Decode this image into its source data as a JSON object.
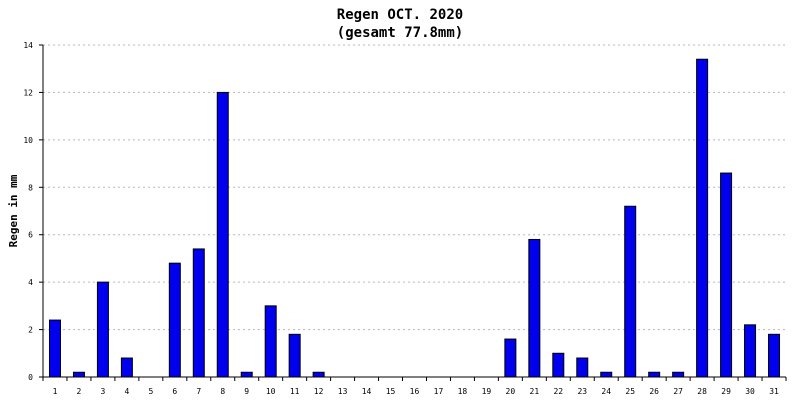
{
  "colors": {
    "bar": "#0000ee",
    "axis": "#000000",
    "grid": "#b8b8b8",
    "background": "#ffffff"
  },
  "chart_data": {
    "type": "bar",
    "title": "Regen OCT. 2020",
    "subtitle": "(gesamt 77.8mm)",
    "xlabel": "",
    "ylabel": "Regen in mm",
    "ylim": [
      0,
      14
    ],
    "yticks": [
      0,
      2,
      4,
      6,
      8,
      10,
      12,
      14
    ],
    "grid": true,
    "categories": [
      "1",
      "2",
      "3",
      "4",
      "5",
      "6",
      "7",
      "8",
      "9",
      "10",
      "11",
      "12",
      "13",
      "14",
      "15",
      "16",
      "17",
      "18",
      "19",
      "20",
      "21",
      "22",
      "23",
      "24",
      "25",
      "26",
      "27",
      "28",
      "29",
      "30",
      "31"
    ],
    "values": [
      2.4,
      0.2,
      4.0,
      0.8,
      0,
      4.8,
      5.4,
      12.0,
      0.2,
      3.0,
      1.8,
      0.2,
      0,
      0,
      0,
      0,
      0,
      0,
      0,
      1.6,
      5.8,
      1.0,
      0.8,
      0.2,
      7.2,
      0.2,
      0.2,
      13.4,
      8.6,
      2.2,
      1.8
    ]
  }
}
